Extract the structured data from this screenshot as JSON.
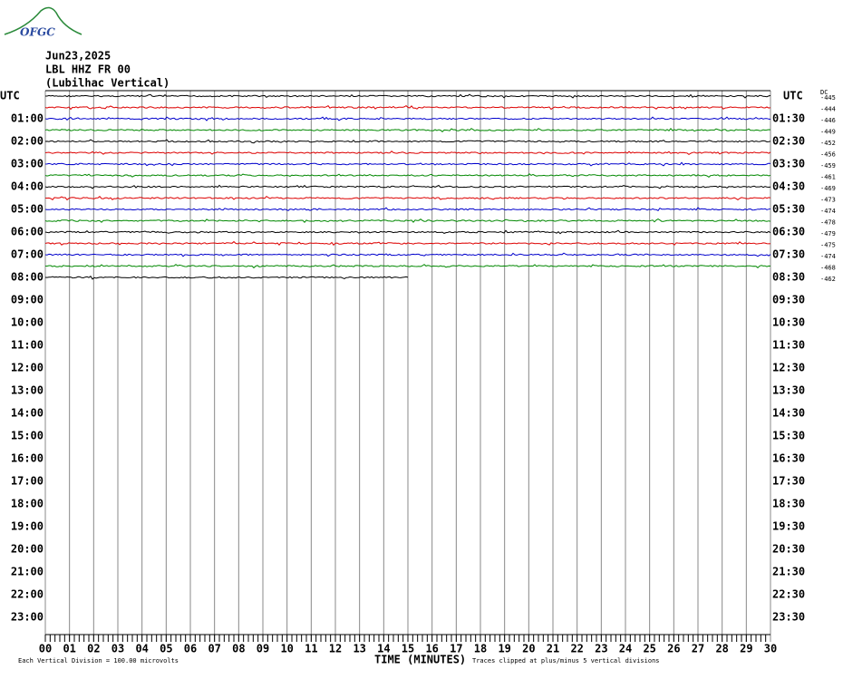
{
  "logo": "OFGC",
  "header": {
    "date": "Jun23,2025",
    "station": "LBL HHZ FR 00",
    "location": "(Lubilhac Vertical)"
  },
  "left_header": "UTC",
  "right_header": "UTC",
  "dc_header": "DC",
  "left_labels": [
    "01:00",
    "02:00",
    "03:00",
    "04:00",
    "05:00",
    "06:00",
    "07:00",
    "08:00",
    "09:00",
    "10:00",
    "11:00",
    "12:00",
    "13:00",
    "14:00",
    "15:00",
    "16:00",
    "17:00",
    "18:00",
    "19:00",
    "20:00",
    "21:00",
    "22:00",
    "23:00"
  ],
  "right_labels": [
    "01:30",
    "02:30",
    "03:30",
    "04:30",
    "05:30",
    "06:30",
    "07:30",
    "08:30",
    "09:30",
    "10:30",
    "11:30",
    "12:30",
    "13:30",
    "14:30",
    "15:30",
    "16:30",
    "17:30",
    "18:30",
    "19:30",
    "20:30",
    "21:30",
    "22:30",
    "23:30"
  ],
  "dc_values": [
    "-445",
    "-444",
    "-446",
    "-449",
    "-452",
    "-456",
    "-459",
    "-461",
    "-469",
    "-473",
    "-474",
    "-478",
    "-479",
    "-475",
    "-474",
    "-468",
    "-462"
  ],
  "x_labels": [
    "00",
    "01",
    "02",
    "03",
    "04",
    "05",
    "06",
    "07",
    "08",
    "09",
    "10",
    "11",
    "12",
    "13",
    "14",
    "15",
    "16",
    "17",
    "18",
    "19",
    "20",
    "21",
    "22",
    "23",
    "24",
    "25",
    "26",
    "27",
    "28",
    "29",
    "30"
  ],
  "footer": {
    "division": "Each Vertical Division =  100.00 microvolts",
    "axis_title": "TIME (MINUTES)",
    "clip_note": "Traces clipped at plus/minus 5 vertical divisions"
  }
}
